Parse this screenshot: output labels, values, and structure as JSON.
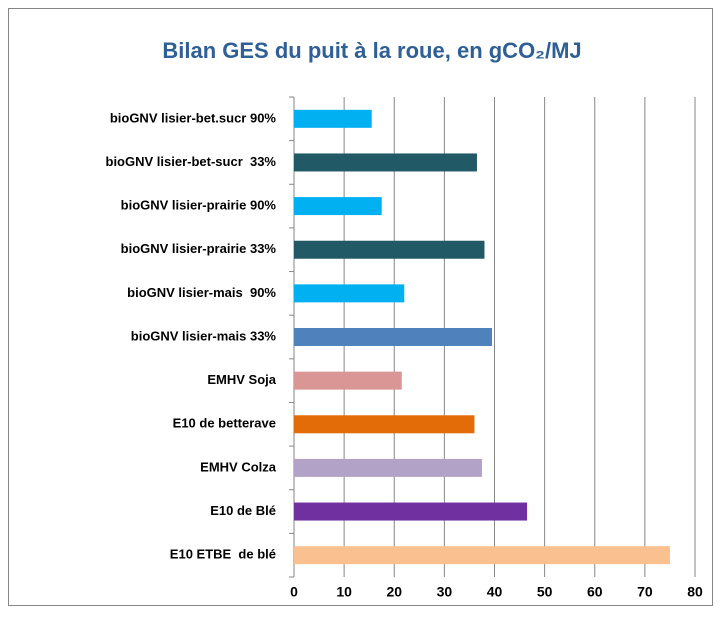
{
  "chart_data": {
    "type": "bar",
    "orientation": "horizontal",
    "title": "Bilan GES du puit à la roue, en gCO₂/MJ",
    "categories": [
      "bioGNV lisier-bet.sucr 90%",
      "bioGNV lisier-bet-sucr  33%",
      "bioGNV lisier-prairie 90%",
      "bioGNV lisier-prairie 33%",
      "bioGNV lisier-mais  90%",
      "bioGNV lisier-mais 33%",
      "EMHV Soja",
      "E10 de betterave",
      "EMHV Colza",
      "E10 de Blé",
      "E10 ETBE  de blé"
    ],
    "values": [
      15.5,
      36.5,
      17.5,
      38,
      22,
      39.5,
      21.5,
      36,
      37.5,
      46.5,
      75
    ],
    "colors": [
      "#00b0f0",
      "#215967",
      "#00b0f0",
      "#215967",
      "#00b0f0",
      "#4f81bd",
      "#d99694",
      "#e36c09",
      "#b3a2c7",
      "#7030a0",
      "#fac090"
    ],
    "xlim": [
      0,
      80
    ],
    "xticks": [
      0,
      10,
      20,
      30,
      40,
      50,
      60,
      70,
      80
    ],
    "grid": true
  }
}
